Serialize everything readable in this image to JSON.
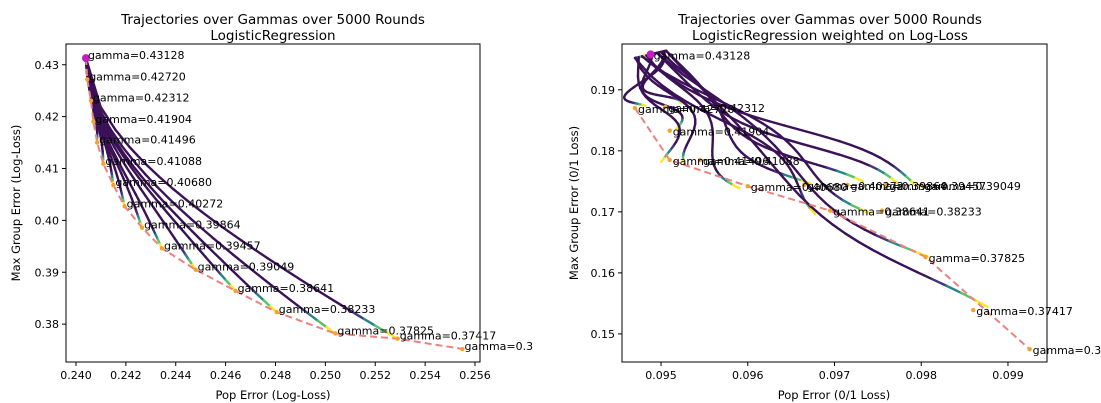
{
  "chart_data": [
    {
      "type": "line",
      "title": "Trajectories over Gammas over 5000 Rounds",
      "subtitle": "LogisticRegression",
      "xlabel": "Pop Error (Log-Loss)",
      "ylabel": "Max Group Error (Log-Loss)",
      "xlim": [
        0.2396,
        0.2562
      ],
      "ylim": [
        0.3727,
        0.434
      ],
      "xticks": [
        "0.240",
        "0.242",
        "0.244",
        "0.246",
        "0.248",
        "0.250",
        "0.252",
        "0.254",
        "0.256"
      ],
      "yticks": [
        "0.38",
        "0.39",
        "0.40",
        "0.41",
        "0.42",
        "0.43"
      ],
      "pareto_line": {
        "color": "#f08080",
        "style": "dashed"
      },
      "endpoints": [
        {
          "label": "gamma=0.43128",
          "x": 0.2404,
          "y": 0.4313
        },
        {
          "label": "gamma=0.42720",
          "x": 0.24045,
          "y": 0.4272
        },
        {
          "label": "gamma=0.42312",
          "x": 0.2406,
          "y": 0.4231
        },
        {
          "label": "gamma=0.41904",
          "x": 0.2407,
          "y": 0.419
        },
        {
          "label": "gamma=0.41496",
          "x": 0.24085,
          "y": 0.415
        },
        {
          "label": "gamma=0.41088",
          "x": 0.2411,
          "y": 0.4109
        },
        {
          "label": "gamma=0.40680",
          "x": 0.2415,
          "y": 0.4068
        },
        {
          "label": "gamma=0.40272",
          "x": 0.24195,
          "y": 0.4027
        },
        {
          "label": "gamma=0.39864",
          "x": 0.24265,
          "y": 0.3986
        },
        {
          "label": "gamma=0.39457",
          "x": 0.24345,
          "y": 0.3946
        },
        {
          "label": "gamma=0.39049",
          "x": 0.2448,
          "y": 0.3905
        },
        {
          "label": "gamma=0.38641",
          "x": 0.2464,
          "y": 0.3864
        },
        {
          "label": "gamma=0.38233",
          "x": 0.24805,
          "y": 0.3823
        },
        {
          "label": "gamma=0.37825",
          "x": 0.2504,
          "y": 0.3782
        },
        {
          "label": "gamma=0.37417",
          "x": 0.2529,
          "y": 0.3772
        },
        {
          "label": "gamma=0.3",
          "x": 0.2555,
          "y": 0.3752
        }
      ],
      "start_point": {
        "x": 0.2404,
        "y": 0.43128,
        "color": "#c020c0"
      }
    },
    {
      "type": "line",
      "title": "Trajectories over Gammas over 5000 Rounds",
      "subtitle": "LogisticRegression weighted on Log-Loss",
      "xlabel": "Pop Error (0/1 Loss)",
      "ylabel": "Max Group Error (0/1 Loss)",
      "xlim": [
        0.09455,
        0.09945
      ],
      "ylim": [
        0.1454,
        0.1975
      ],
      "xticks": [
        "0.095",
        "0.096",
        "0.097",
        "0.098",
        "0.099"
      ],
      "yticks": [
        "0.15",
        "0.16",
        "0.17",
        "0.18",
        "0.19"
      ],
      "pareto_line": {
        "color": "#f08080",
        "style": "dashed"
      },
      "endpoints": [
        {
          "label": "gamma=0.43128",
          "x": 0.09488,
          "y": 0.1958
        },
        {
          "label": "gamma=0.42720",
          "x": 0.0947,
          "y": 0.187
        },
        {
          "label": "gamma=0.42312",
          "x": 0.09505,
          "y": 0.1872
        },
        {
          "label": "gamma=0.41904",
          "x": 0.0951,
          "y": 0.1833
        },
        {
          "label": "gamma=0.41496",
          "x": 0.0951,
          "y": 0.1785
        },
        {
          "label": "gamma=0.41088",
          "x": 0.09545,
          "y": 0.1785
        },
        {
          "label": "gamma=0.40680",
          "x": 0.096,
          "y": 0.1742
        },
        {
          "label": "gamma=0.40272",
          "x": 0.09665,
          "y": 0.1744
        },
        {
          "label": "gamma=0.39864",
          "x": 0.09715,
          "y": 0.1744
        },
        {
          "label": "gamma=0.39457",
          "x": 0.0976,
          "y": 0.1744
        },
        {
          "label": "gamma=0.39049",
          "x": 0.098,
          "y": 0.1744
        },
        {
          "label": "gamma=0.38641",
          "x": 0.09695,
          "y": 0.1702
        },
        {
          "label": "gamma=0.38233",
          "x": 0.09755,
          "y": 0.1702
        },
        {
          "label": "gamma=0.37825",
          "x": 0.09805,
          "y": 0.1626
        },
        {
          "label": "gamma=0.37417",
          "x": 0.0986,
          "y": 0.1539
        },
        {
          "label": "gamma=0.3",
          "x": 0.09925,
          "y": 0.1475
        }
      ],
      "start_point": {
        "x": 0.09488,
        "y": 0.1958,
        "color": "#c020c0"
      }
    }
  ]
}
